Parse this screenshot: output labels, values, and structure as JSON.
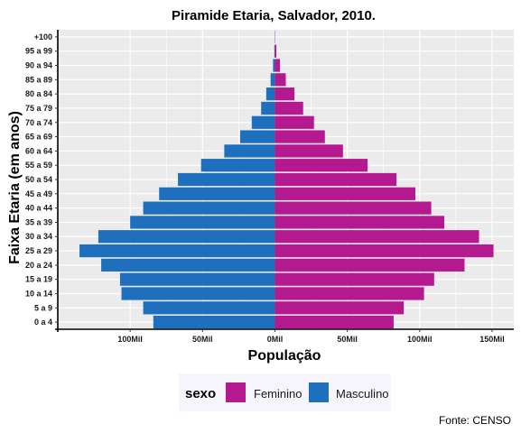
{
  "chart_data": {
    "type": "bar",
    "orientation": "horizontal-pyramid",
    "title": "Piramide Etaria, Salvador, 2010.",
    "xlabel": "População",
    "ylabel": "Faixa Etaria (em anos)",
    "categories": [
      "0 a 4",
      "5 a 9",
      "10 a 14",
      "15 a 19",
      "20 a 24",
      "25 a 29",
      "30 a 34",
      "35 a 39",
      "40 a 44",
      "45 a 49",
      "50 a 54",
      "55 a 59",
      "60 a 64",
      "65 a 69",
      "70 a 74",
      "75 a 79",
      "80 a 84",
      "85 a 89",
      "90 a 94",
      "95 a 99",
      "+100"
    ],
    "series": [
      {
        "name": "Feminino",
        "color": "#b5198f",
        "side": "right",
        "values": [
          82000,
          89000,
          103000,
          110000,
          131000,
          151000,
          141000,
          117000,
          108000,
          97000,
          84000,
          64000,
          47000,
          34500,
          27000,
          19500,
          13500,
          7500,
          3500,
          1000,
          200
        ]
      },
      {
        "name": "Masculino",
        "color": "#1f6fbf",
        "side": "left",
        "values": [
          84000,
          91000,
          106000,
          107000,
          120000,
          135000,
          122000,
          100000,
          91000,
          80000,
          67000,
          51000,
          35000,
          24000,
          16000,
          9500,
          6000,
          3000,
          1300,
          400,
          100
        ]
      }
    ],
    "xticks": [
      -100000,
      -50000,
      0,
      50000,
      100000,
      150000
    ],
    "xtick_labels": [
      "100Mil",
      "50Mil",
      "0Mil",
      "50Mil",
      "100Mil",
      "150Mil"
    ],
    "xlim": [
      -150000,
      165000
    ],
    "legend": {
      "title": "sexo",
      "position": "bottom",
      "entries": [
        "Feminino",
        "Masculino"
      ]
    },
    "caption": "Fonte: CENSO",
    "grid": true
  }
}
